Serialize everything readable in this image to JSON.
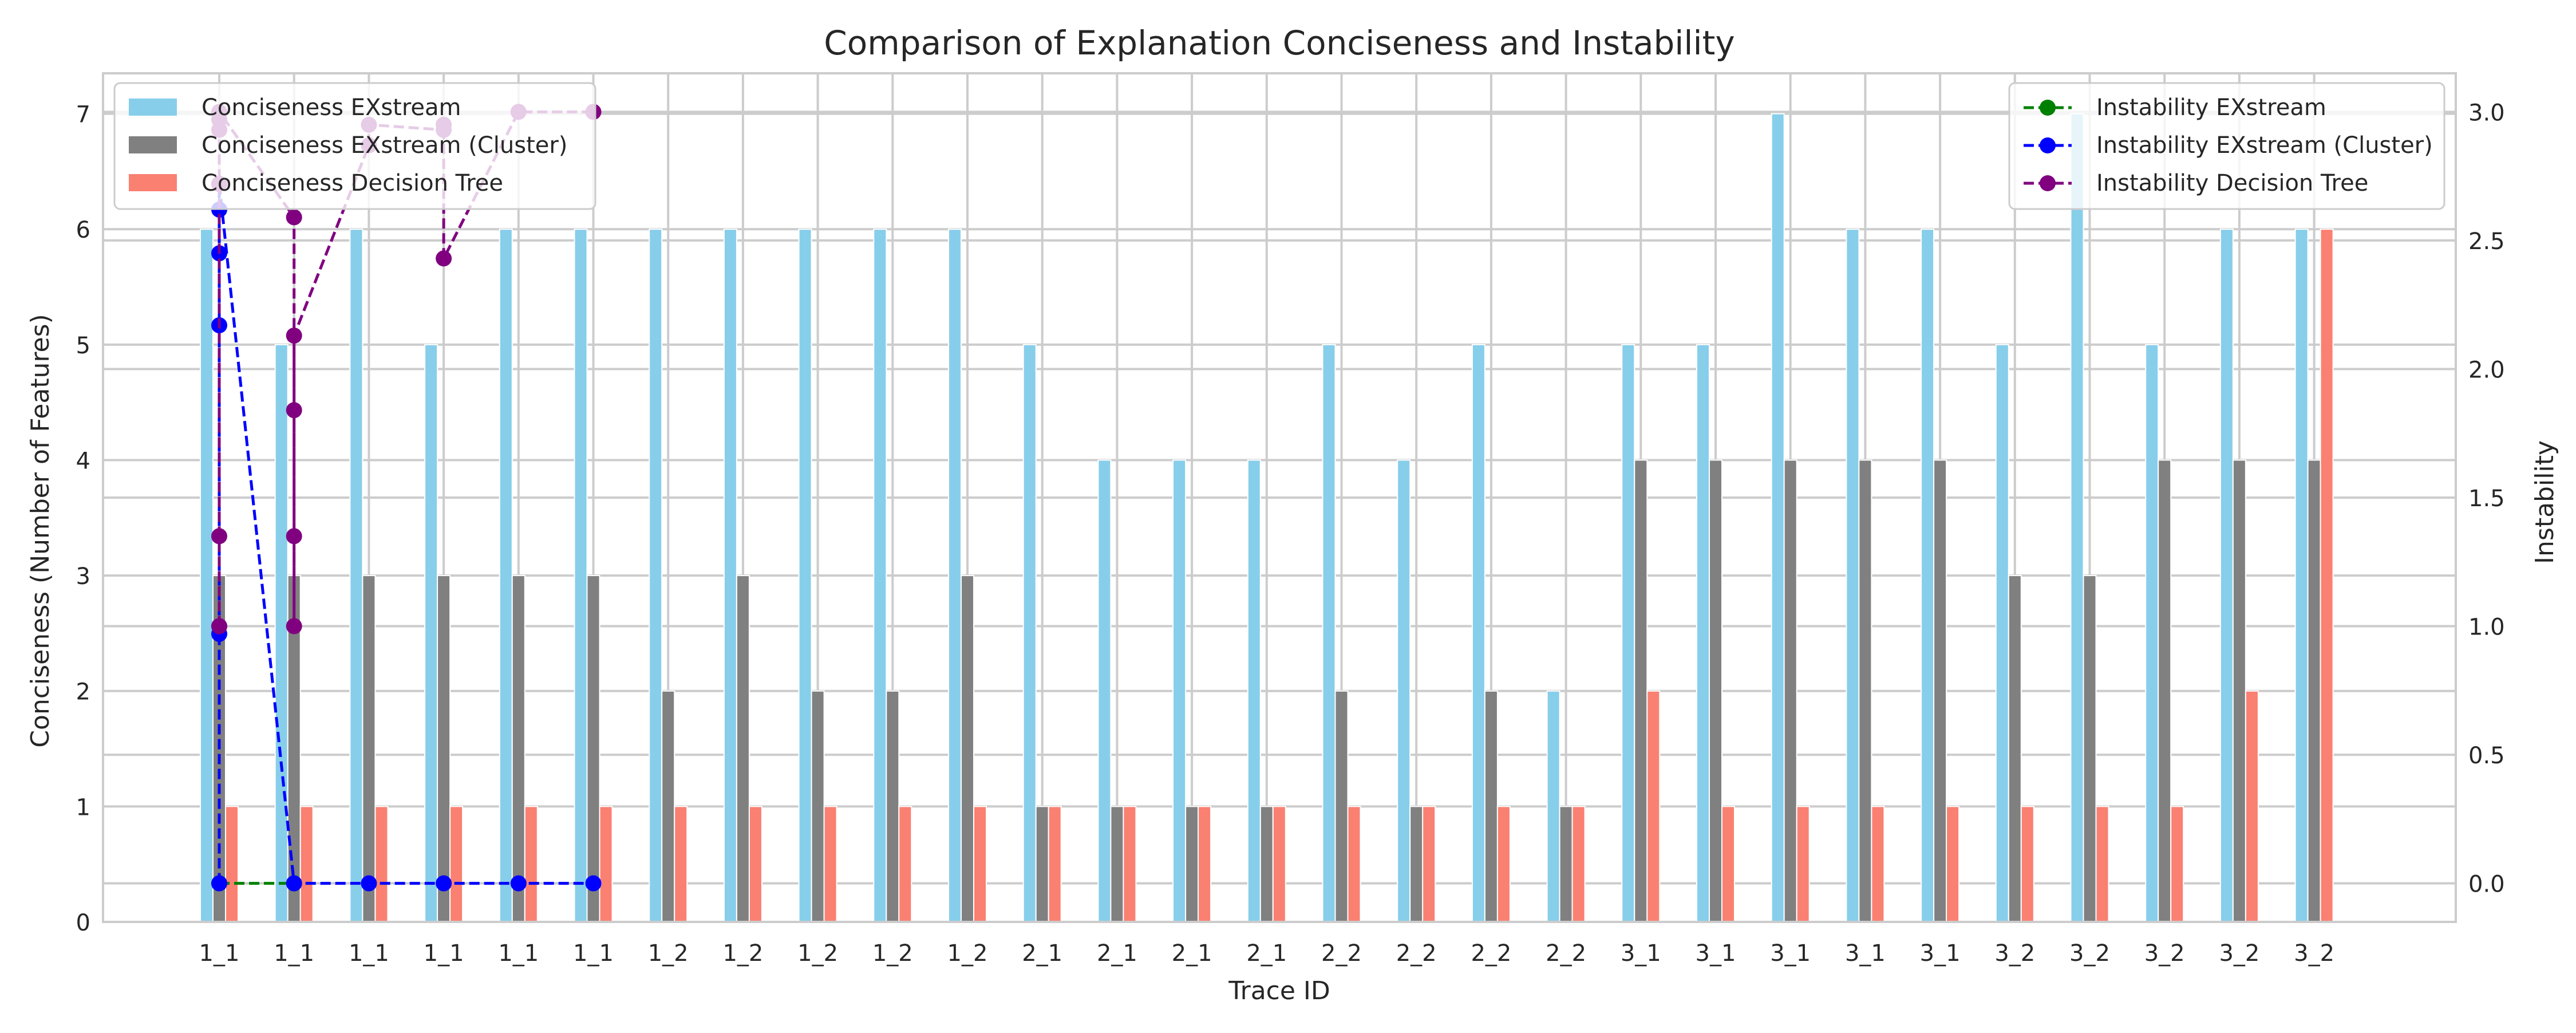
{
  "chart_data": {
    "type": "bar",
    "title": "Comparison of Explanation Conciseness and Instability",
    "xlabel": "Trace ID",
    "ylabel": "Conciseness (Number of Features)",
    "y2label": "Instability",
    "ylim": [
      0,
      7.35
    ],
    "y2lim": [
      -0.15,
      3.15
    ],
    "yticks": [
      0,
      1,
      2,
      3,
      4,
      5,
      6,
      7
    ],
    "y2ticks": [
      0.0,
      0.5,
      1.0,
      1.5,
      2.0,
      2.5,
      3.0
    ],
    "grid": true,
    "categories": [
      "1_1",
      "1_1",
      "1_1",
      "1_1",
      "1_1",
      "1_1",
      "1_2",
      "1_2",
      "1_2",
      "1_2",
      "1_2",
      "2_1",
      "2_1",
      "2_1",
      "2_1",
      "2_2",
      "2_2",
      "2_2",
      "2_2",
      "3_1",
      "3_1",
      "3_1",
      "3_1",
      "3_1",
      "3_2",
      "3_2",
      "3_2",
      "3_2",
      "3_2"
    ],
    "series": [
      {
        "name": "Conciseness EXstream",
        "color": "#87CEEB",
        "values": [
          6,
          5,
          6,
          5,
          6,
          6,
          6,
          6,
          6,
          6,
          6,
          5,
          4,
          4,
          4,
          5,
          4,
          5,
          2,
          5,
          5,
          7,
          6,
          6,
          5,
          7,
          5,
          6,
          6
        ]
      },
      {
        "name": "Conciseness EXstream (Cluster)",
        "color": "#808080",
        "values": [
          3,
          3,
          3,
          3,
          3,
          3,
          2,
          3,
          2,
          2,
          3,
          1,
          1,
          1,
          1,
          2,
          1,
          2,
          1,
          4,
          4,
          4,
          4,
          4,
          3,
          3,
          4,
          4,
          4
        ]
      },
      {
        "name": "Conciseness Decision Tree",
        "color": "#FA8072",
        "values": [
          1,
          1,
          1,
          1,
          1,
          1,
          1,
          1,
          1,
          1,
          1,
          1,
          1,
          1,
          1,
          1,
          1,
          1,
          1,
          2,
          1,
          1,
          1,
          1,
          1,
          1,
          1,
          2,
          6
        ]
      }
    ],
    "line_series": [
      {
        "name": "Instability EXstream",
        "color": "#008000",
        "points": [
          [
            0,
            0.0
          ],
          [
            1,
            0.0
          ]
        ]
      },
      {
        "name": "Instability EXstream (Cluster)",
        "color": "#0000FF",
        "points": [
          [
            0,
            0.0
          ],
          [
            0,
            0.97
          ],
          [
            0,
            1.0
          ],
          [
            0,
            2.17
          ],
          [
            0,
            2.45
          ],
          [
            0,
            2.62
          ],
          [
            0,
            2.72
          ],
          [
            1,
            0.0
          ],
          [
            2,
            0.0
          ],
          [
            3,
            0.0
          ],
          [
            4,
            0.0
          ],
          [
            5,
            0.0
          ]
        ]
      },
      {
        "name": "Instability Decision Tree",
        "color": "#800080",
        "points": [
          [
            0,
            1.0
          ],
          [
            0,
            1.35
          ],
          [
            0,
            2.72
          ],
          [
            0,
            2.93
          ],
          [
            0,
            2.97
          ],
          [
            0,
            3.0
          ],
          [
            1,
            2.59
          ],
          [
            1,
            1.0
          ],
          [
            1,
            1.35
          ],
          [
            1,
            1.84
          ],
          [
            1,
            2.13
          ],
          [
            2,
            2.87
          ],
          [
            2,
            2.95
          ],
          [
            3,
            2.93
          ],
          [
            3,
            2.95
          ],
          [
            3,
            2.43
          ],
          [
            4,
            3.0
          ],
          [
            5,
            3.0
          ]
        ]
      }
    ],
    "legend_left": "top-left",
    "legend_right": "top-right"
  }
}
